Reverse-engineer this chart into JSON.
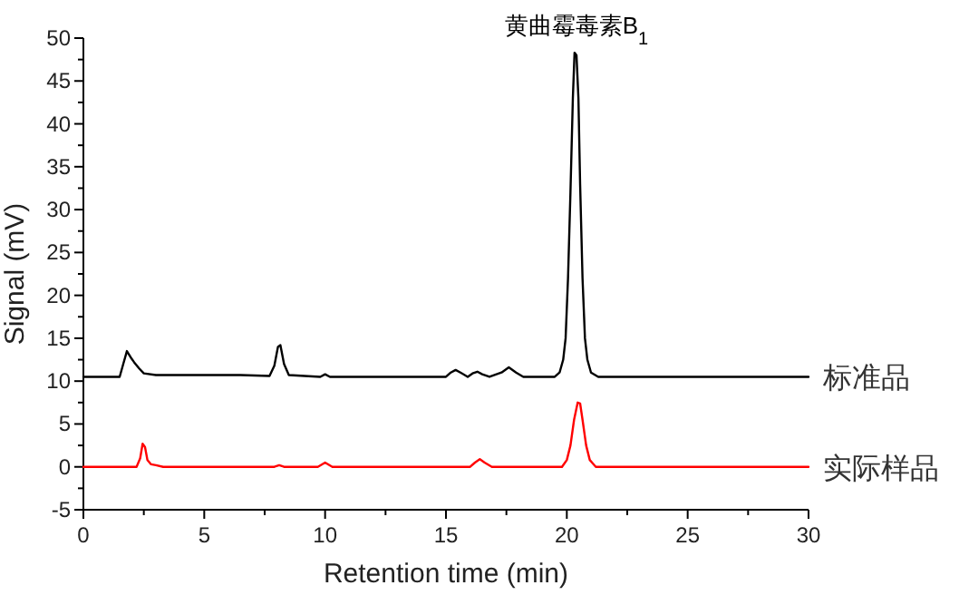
{
  "chart_data": {
    "type": "line",
    "xlabel": "Retention time (min)",
    "ylabel": "Signal (mV)",
    "xlim": [
      0,
      30
    ],
    "ylim": [
      -5,
      50
    ],
    "xticks": [
      0,
      5,
      10,
      15,
      20,
      25,
      30
    ],
    "yticks": [
      -5,
      0,
      5,
      10,
      15,
      20,
      25,
      30,
      35,
      40,
      45,
      50
    ],
    "grid": false,
    "marker": "none",
    "line_style": "solid",
    "annotations": [
      {
        "text": "黄曲霉毒素B$_{1}$",
        "x": 20.4,
        "y": 48
      }
    ],
    "series": [
      {
        "name": "标准品",
        "color": "#000000",
        "x": [
          0,
          1.5,
          1.65,
          1.8,
          1.95,
          2.1,
          2.3,
          2.5,
          3.0,
          6.5,
          7.7,
          7.9,
          8.05,
          8.15,
          8.3,
          8.5,
          9.8,
          10.0,
          10.2,
          15.0,
          15.2,
          15.4,
          15.6,
          15.9,
          16.1,
          16.3,
          16.5,
          16.8,
          17.3,
          17.6,
          17.9,
          18.2,
          19.5,
          19.7,
          19.85,
          19.95,
          20.05,
          20.15,
          20.25,
          20.32,
          20.4,
          20.48,
          20.55,
          20.65,
          20.75,
          20.85,
          21.0,
          21.3,
          30
        ],
        "values": [
          10.5,
          10.5,
          12.0,
          13.5,
          12.8,
          12.2,
          11.5,
          10.9,
          10.7,
          10.7,
          10.6,
          11.8,
          14.0,
          14.2,
          12.0,
          10.7,
          10.5,
          10.8,
          10.5,
          10.5,
          11.0,
          11.3,
          11.0,
          10.5,
          10.9,
          11.1,
          10.8,
          10.5,
          11.0,
          11.6,
          11.0,
          10.5,
          10.5,
          11.0,
          12.5,
          15,
          22,
          32,
          43,
          48.3,
          48.0,
          43,
          33,
          22,
          15,
          12.5,
          11.0,
          10.5,
          10.5
        ]
      },
      {
        "name": "实际样品",
        "color": "#ff0000",
        "x": [
          0,
          2.2,
          2.35,
          2.45,
          2.55,
          2.65,
          2.8,
          3.0,
          3.3,
          7.9,
          8.1,
          8.3,
          9.7,
          10.0,
          10.3,
          16.0,
          16.2,
          16.4,
          16.6,
          16.9,
          19.8,
          20.0,
          20.15,
          20.3,
          20.45,
          20.55,
          20.65,
          20.8,
          20.95,
          21.2,
          30
        ],
        "values": [
          0,
          0,
          1.0,
          2.7,
          2.3,
          0.8,
          0.3,
          0.2,
          0,
          0,
          0.2,
          0,
          0,
          0.5,
          0,
          0,
          0.5,
          0.9,
          0.5,
          0,
          0,
          0.8,
          2.5,
          5.5,
          7.5,
          7.4,
          5.5,
          2.5,
          0.8,
          0,
          0
        ]
      }
    ]
  }
}
